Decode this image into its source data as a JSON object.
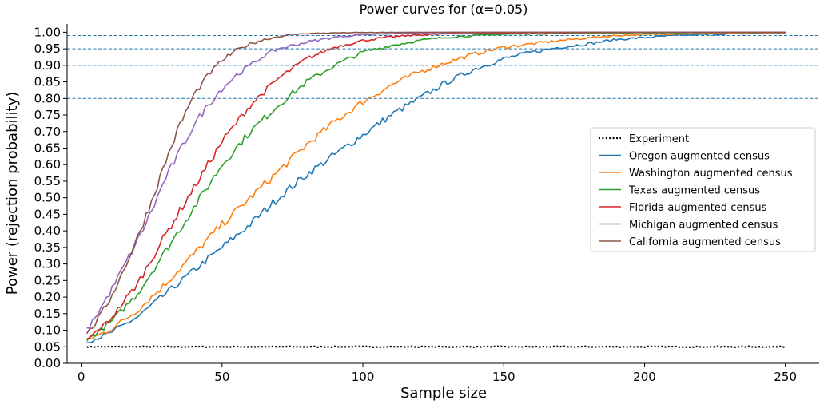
{
  "chart_data": {
    "type": "line",
    "title": "Power curves for (α=0.05)",
    "xlabel": "Sample size",
    "ylabel": "Power (rejection probability)",
    "xlim": [
      -5,
      262
    ],
    "ylim": [
      0,
      1.025
    ],
    "xticks": [
      0,
      50,
      100,
      150,
      200,
      250
    ],
    "yticks": [
      0.0,
      0.05,
      0.1,
      0.15,
      0.2,
      0.25,
      0.3,
      0.35,
      0.4,
      0.45,
      0.5,
      0.55,
      0.6,
      0.65,
      0.7,
      0.75,
      0.8,
      0.85,
      0.9,
      0.95,
      1.0
    ],
    "reference_lines": [
      0.8,
      0.9,
      0.95,
      0.99
    ],
    "legend_position": "center-right",
    "grid": false,
    "x_range": [
      2,
      250
    ],
    "series": [
      {
        "name": "Experiment",
        "style": "dotted",
        "color": "#000000",
        "x": [
          2,
          50,
          100,
          150,
          200,
          250
        ],
        "y": [
          0.05,
          0.05,
          0.05,
          0.05,
          0.05,
          0.05
        ]
      },
      {
        "name": "Oregon augmented census",
        "style": "solid",
        "color": "#1f77b4",
        "x": [
          2,
          10,
          20,
          30,
          40,
          50,
          60,
          70,
          80,
          90,
          100,
          110,
          120,
          130,
          140,
          150,
          160,
          170,
          180,
          190,
          200,
          210,
          220,
          230,
          240,
          250
        ],
        "y": [
          0.065,
          0.09,
          0.14,
          0.21,
          0.28,
          0.35,
          0.42,
          0.5,
          0.57,
          0.63,
          0.69,
          0.75,
          0.8,
          0.85,
          0.89,
          0.92,
          0.94,
          0.955,
          0.965,
          0.978,
          0.984,
          0.99,
          0.993,
          0.995,
          0.996,
          0.997
        ]
      },
      {
        "name": "Washington augmented census",
        "style": "solid",
        "color": "#ff7f0e",
        "x": [
          2,
          10,
          20,
          30,
          40,
          50,
          60,
          70,
          80,
          90,
          100,
          110,
          120,
          130,
          140,
          150,
          160,
          170,
          180,
          190,
          200,
          210,
          220,
          230,
          240,
          250
        ],
        "y": [
          0.07,
          0.1,
          0.16,
          0.24,
          0.33,
          0.42,
          0.5,
          0.58,
          0.66,
          0.73,
          0.79,
          0.84,
          0.88,
          0.91,
          0.935,
          0.955,
          0.965,
          0.975,
          0.983,
          0.99,
          0.993,
          0.995,
          0.996,
          0.997,
          0.998,
          0.998
        ]
      },
      {
        "name": "Texas augmented census",
        "style": "solid",
        "color": "#2ca02c",
        "x": [
          2,
          10,
          20,
          30,
          40,
          50,
          60,
          70,
          80,
          90,
          100,
          110,
          120,
          130,
          140,
          150,
          175,
          200,
          225,
          250
        ],
        "y": [
          0.07,
          0.12,
          0.21,
          0.34,
          0.47,
          0.6,
          0.7,
          0.78,
          0.85,
          0.9,
          0.94,
          0.96,
          0.975,
          0.985,
          0.99,
          0.994,
          0.997,
          0.998,
          0.999,
          0.999
        ]
      },
      {
        "name": "Florida augmented census",
        "style": "solid",
        "color": "#d62728",
        "x": [
          2,
          10,
          20,
          30,
          40,
          50,
          60,
          70,
          80,
          90,
          100,
          110,
          120,
          130,
          140,
          150,
          175,
          200,
          225,
          250
        ],
        "y": [
          0.07,
          0.13,
          0.24,
          0.39,
          0.53,
          0.67,
          0.78,
          0.86,
          0.92,
          0.955,
          0.975,
          0.986,
          0.992,
          0.995,
          0.997,
          0.998,
          0.999,
          1.0,
          1.0,
          1.0
        ]
      },
      {
        "name": "Michigan augmented census",
        "style": "solid",
        "color": "#9467bd",
        "x": [
          2,
          5,
          10,
          15,
          20,
          25,
          30,
          35,
          40,
          45,
          50,
          55,
          60,
          65,
          70,
          80,
          90,
          100,
          110,
          125,
          150,
          200,
          250
        ],
        "y": [
          0.1,
          0.14,
          0.21,
          0.29,
          0.37,
          0.46,
          0.56,
          0.64,
          0.72,
          0.78,
          0.83,
          0.87,
          0.9,
          0.93,
          0.95,
          0.97,
          0.985,
          0.993,
          0.996,
          0.998,
          1.0,
          1.0,
          1.0
        ]
      },
      {
        "name": "California augmented census",
        "style": "solid",
        "color": "#8c564b",
        "x": [
          2,
          5,
          10,
          15,
          20,
          25,
          30,
          35,
          40,
          45,
          50,
          55,
          60,
          65,
          70,
          75,
          80,
          90,
          100,
          125,
          150,
          200,
          250
        ],
        "y": [
          0.09,
          0.12,
          0.19,
          0.28,
          0.38,
          0.49,
          0.61,
          0.72,
          0.81,
          0.87,
          0.915,
          0.945,
          0.965,
          0.978,
          0.987,
          0.993,
          0.996,
          0.998,
          0.999,
          1.0,
          1.0,
          1.0,
          1.0
        ]
      }
    ]
  }
}
